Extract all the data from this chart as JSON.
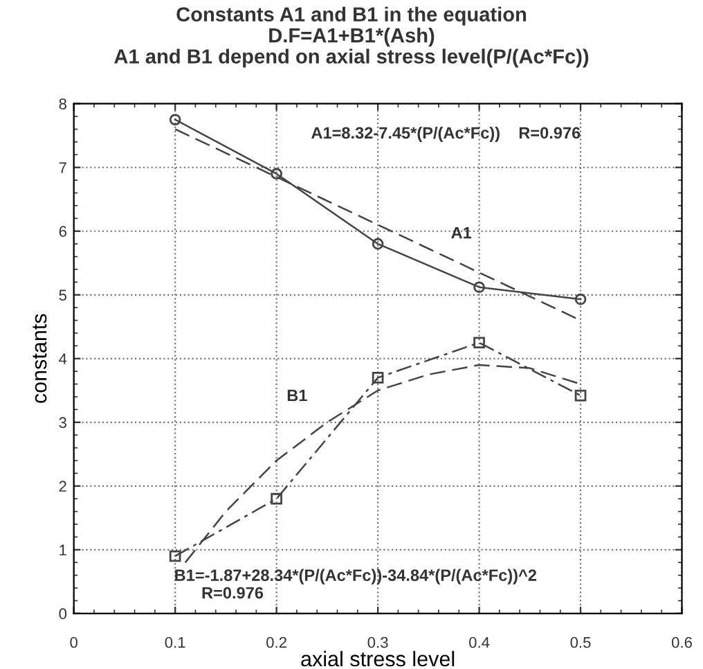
{
  "chart_data": {
    "type": "line",
    "title": "Constants A1 and B1 in the equation\nD.F=A1+B1*(Ash)\nA1 and B1 depend on axial stress level(P/(Ac*Fc))",
    "xlabel": "axial stress level",
    "ylabel": "constants",
    "x": [
      0.1,
      0.2,
      0.3,
      0.4,
      0.5
    ],
    "series": [
      {
        "color": "#444444",
        "marker": "circle",
        "line_style": "solid",
        "values": [
          7.75,
          6.9,
          5.8,
          5.12,
          4.93
        ]
      },
      {
        "color": "#444444",
        "marker": "none",
        "line_style": "dashed",
        "x": [
          0.1,
          0.5
        ],
        "values": [
          7.6,
          4.6
        ]
      },
      {
        "color": "#444444",
        "marker": "square",
        "line_style": "dotted",
        "values": [
          0.9,
          1.8,
          3.7,
          4.25,
          3.42
        ]
      },
      {
        "color": "#444444",
        "marker": "none",
        "line_style": "dashed",
        "x": [
          0.11,
          0.15,
          0.2,
          0.25,
          0.3,
          0.35,
          0.4,
          0.45,
          0.5
        ],
        "values": [
          0.8,
          1.6,
          2.4,
          3.0,
          3.5,
          3.75,
          3.9,
          3.85,
          3.6
        ]
      }
    ],
    "annotations": [
      "A1",
      "B1",
      "A1=8.32-7.45*(P/(Ac*Fc))    R=0.976",
      "B1=-1.87+28.34*(P/(Ac*Fc))-34.84*(P/(Ac*Fc))^2\n      R=0.976"
    ],
    "xlim": [
      0,
      0.6
    ],
    "xticks": [
      0,
      0.1,
      0.2,
      0.3,
      0.4,
      0.5,
      0.6
    ],
    "ylim": [
      0,
      8
    ],
    "yticks": [
      0,
      1,
      2,
      3,
      4,
      5,
      6,
      7,
      8
    ],
    "grid": true,
    "legend": false
  }
}
